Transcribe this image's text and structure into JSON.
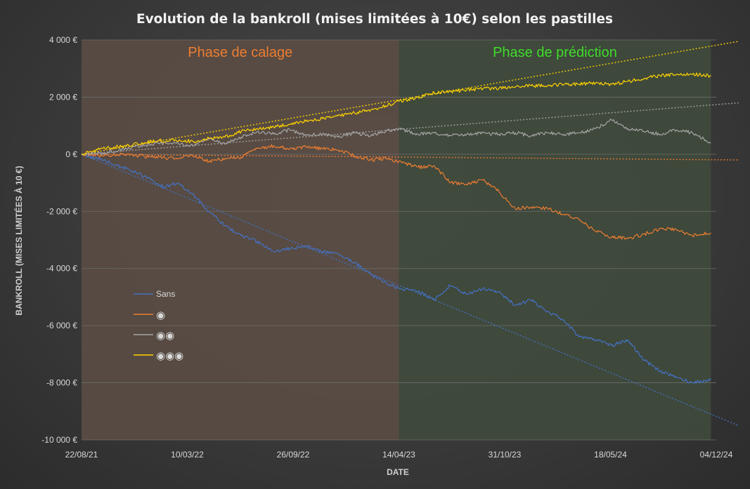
{
  "chart_data": {
    "type": "line",
    "title": "Evolution de la bankroll (mises limitées à 10€) selon les pastilles",
    "xlabel": "DATE",
    "ylabel": "BANKROLL (MISES LIMITÉES À 10 €)",
    "ylim": [
      -10000,
      4000
    ],
    "y_ticks": [
      4000,
      2000,
      0,
      -2000,
      -4000,
      -6000,
      -8000,
      -10000
    ],
    "y_tick_labels": [
      "4 000 €",
      "2 000 €",
      "0 €",
      "-2 000 €",
      "-4 000 €",
      "-6 000 €",
      "-8 000 €",
      "-10 000 €"
    ],
    "x_ticks": [
      "2021-08-22",
      "2022-03-10",
      "2022-09-26",
      "2023-04-14",
      "2023-10-31",
      "2024-05-18",
      "2024-12-04"
    ],
    "x_tick_labels": [
      "22/08/21",
      "10/03/22",
      "26/09/22",
      "14/04/23",
      "31/10/23",
      "18/05/24",
      "04/12/24"
    ],
    "xlim": [
      "2021-08-22",
      "2024-12-04"
    ],
    "grid": true,
    "legend_position": "left",
    "phases": [
      {
        "label": "Phase de calage",
        "start": "2021-08-22",
        "end": "2023-04-14",
        "color": "#5a4c44"
      },
      {
        "label": "Phase de prédiction",
        "start": "2023-04-14",
        "end": "2024-11-24",
        "color": "#3f4a3c"
      }
    ],
    "series": [
      {
        "name": "Sans",
        "color": "#4472c4",
        "x": [
          "2021-08-22",
          "2021-10-01",
          "2021-11-15",
          "2022-01-01",
          "2022-01-25",
          "2022-02-20",
          "2022-03-20",
          "2022-04-20",
          "2022-05-20",
          "2022-06-20",
          "2022-07-20",
          "2022-08-20",
          "2022-09-20",
          "2022-10-20",
          "2022-11-20",
          "2022-12-20",
          "2023-01-20",
          "2023-02-20",
          "2023-03-20",
          "2023-04-14",
          "2023-05-20",
          "2023-06-20",
          "2023-07-20",
          "2023-08-20",
          "2023-09-20",
          "2023-10-20",
          "2023-11-20",
          "2023-12-20",
          "2024-01-20",
          "2024-02-20",
          "2024-03-20",
          "2024-04-20",
          "2024-05-20",
          "2024-06-20",
          "2024-07-20",
          "2024-08-20",
          "2024-09-20",
          "2024-10-20",
          "2024-11-24"
        ],
        "y": [
          0,
          -200,
          -500,
          -900,
          -1150,
          -1000,
          -1400,
          -2000,
          -2500,
          -2850,
          -3050,
          -3400,
          -3300,
          -3200,
          -3400,
          -3500,
          -3800,
          -4200,
          -4500,
          -4700,
          -4800,
          -5100,
          -4600,
          -4900,
          -4700,
          -4800,
          -5300,
          -5100,
          -5500,
          -5800,
          -6400,
          -6500,
          -6700,
          -6500,
          -7200,
          -7600,
          -7800,
          -8000,
          -7900
        ]
      },
      {
        "name": "◉",
        "color": "#ed7d31",
        "x": [
          "2021-08-22",
          "2021-10-01",
          "2021-11-15",
          "2022-01-01",
          "2022-02-15",
          "2022-03-20",
          "2022-04-20",
          "2022-05-20",
          "2022-06-20",
          "2022-07-20",
          "2022-08-20",
          "2022-09-20",
          "2022-10-20",
          "2022-11-20",
          "2022-12-20",
          "2023-01-20",
          "2023-02-20",
          "2023-03-20",
          "2023-04-14",
          "2023-05-20",
          "2023-06-20",
          "2023-07-20",
          "2023-08-20",
          "2023-09-20",
          "2023-10-20",
          "2023-11-20",
          "2023-12-20",
          "2024-01-20",
          "2024-02-20",
          "2024-03-20",
          "2024-04-20",
          "2024-05-20",
          "2024-06-20",
          "2024-07-20",
          "2024-08-20",
          "2024-09-20",
          "2024-10-20",
          "2024-11-24"
        ],
        "y": [
          0,
          -50,
          0,
          -100,
          -150,
          -50,
          -250,
          -150,
          -100,
          200,
          300,
          200,
          250,
          200,
          150,
          -50,
          -200,
          -150,
          -250,
          -450,
          -400,
          -1000,
          -1050,
          -900,
          -1300,
          -1900,
          -1850,
          -1900,
          -2100,
          -2300,
          -2700,
          -2900,
          -2950,
          -2800,
          -2600,
          -2650,
          -2850,
          -2750
        ]
      },
      {
        "name": "◉◉",
        "color": "#a5a5a5",
        "x": [
          "2021-08-22",
          "2021-10-01",
          "2021-11-15",
          "2022-01-01",
          "2022-02-15",
          "2022-03-20",
          "2022-04-20",
          "2022-05-20",
          "2022-06-20",
          "2022-07-20",
          "2022-08-20",
          "2022-09-20",
          "2022-10-20",
          "2022-11-20",
          "2022-12-20",
          "2023-01-20",
          "2023-02-20",
          "2023-03-20",
          "2023-04-14",
          "2023-05-20",
          "2023-06-20",
          "2023-07-20",
          "2023-08-20",
          "2023-09-20",
          "2023-10-20",
          "2023-11-20",
          "2023-12-20",
          "2024-01-20",
          "2024-02-20",
          "2024-03-20",
          "2024-04-20",
          "2024-05-20",
          "2024-06-20",
          "2024-07-20",
          "2024-08-20",
          "2024-09-20",
          "2024-10-20",
          "2024-11-24"
        ],
        "y": [
          0,
          50,
          200,
          350,
          400,
          300,
          550,
          350,
          600,
          800,
          700,
          850,
          650,
          700,
          600,
          750,
          650,
          800,
          900,
          700,
          750,
          650,
          700,
          750,
          700,
          750,
          650,
          750,
          700,
          750,
          900,
          1200,
          900,
          800,
          700,
          850,
          750,
          400
        ]
      },
      {
        "name": "◉◉◉",
        "color": "#ffd400",
        "x": [
          "2021-08-22",
          "2021-10-01",
          "2021-11-15",
          "2022-01-01",
          "2022-02-15",
          "2022-03-20",
          "2022-04-20",
          "2022-05-20",
          "2022-06-20",
          "2022-07-20",
          "2022-08-20",
          "2022-09-20",
          "2022-10-20",
          "2022-11-20",
          "2022-12-20",
          "2023-01-20",
          "2023-02-20",
          "2023-03-20",
          "2023-04-14",
          "2023-05-20",
          "2023-06-20",
          "2023-07-20",
          "2023-08-20",
          "2023-09-20",
          "2023-10-20",
          "2023-11-20",
          "2023-12-20",
          "2024-01-20",
          "2024-02-20",
          "2024-03-20",
          "2024-04-20",
          "2024-05-20",
          "2024-06-20",
          "2024-07-20",
          "2024-08-20",
          "2024-09-20",
          "2024-10-20",
          "2024-11-24"
        ],
        "y": [
          0,
          200,
          300,
          450,
          500,
          450,
          550,
          600,
          800,
          900,
          950,
          1050,
          1150,
          1250,
          1350,
          1450,
          1550,
          1700,
          1850,
          2000,
          2150,
          2200,
          2250,
          2300,
          2300,
          2350,
          2400,
          2400,
          2450,
          2450,
          2500,
          2450,
          2550,
          2650,
          2750,
          2800,
          2800,
          2750
        ]
      }
    ],
    "trendlines": [
      {
        "series": "Sans",
        "color": "#4472c4",
        "x": [
          "2021-08-22",
          "2025-01-15"
        ],
        "y": [
          0,
          -9500
        ]
      },
      {
        "series": "◉",
        "color": "#ed7d31",
        "x": [
          "2021-08-22",
          "2025-01-15"
        ],
        "y": [
          0,
          -200
        ]
      },
      {
        "series": "◉◉",
        "color": "#a5a5a5",
        "x": [
          "2021-08-22",
          "2025-01-15"
        ],
        "y": [
          0,
          1800
        ]
      },
      {
        "series": "◉◉◉",
        "color": "#ffd400",
        "x": [
          "2021-08-22",
          "2025-01-15"
        ],
        "y": [
          0,
          3950
        ]
      }
    ],
    "legend": [
      "Sans",
      "◉",
      "◉◉",
      "◉◉◉"
    ]
  }
}
